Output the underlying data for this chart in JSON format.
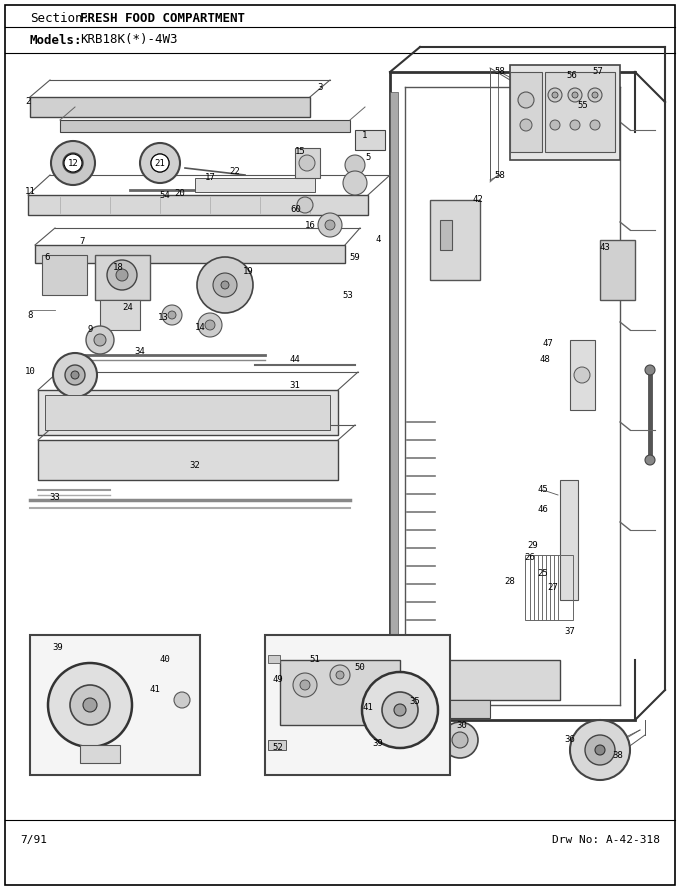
{
  "section_label": "Section:",
  "section_title": "FRESH FOOD COMPARTMENT",
  "models_label": "Models:",
  "models_value": "KRB18K(*)-4W3",
  "footer_left": "7/91",
  "footer_right": "Drw No: A-42-318",
  "bg_color": "#ffffff",
  "border_color": "#000000",
  "text_color": "#000000",
  "font_size_section_label": 9,
  "font_size_section_title": 9,
  "font_size_models": 9,
  "font_size_footer": 8,
  "font_size_partnum": 6.5,
  "line_gray": "#555555",
  "fill_light": "#e8e8e8",
  "fill_mid": "#cccccc",
  "fill_dark": "#aaaaaa"
}
